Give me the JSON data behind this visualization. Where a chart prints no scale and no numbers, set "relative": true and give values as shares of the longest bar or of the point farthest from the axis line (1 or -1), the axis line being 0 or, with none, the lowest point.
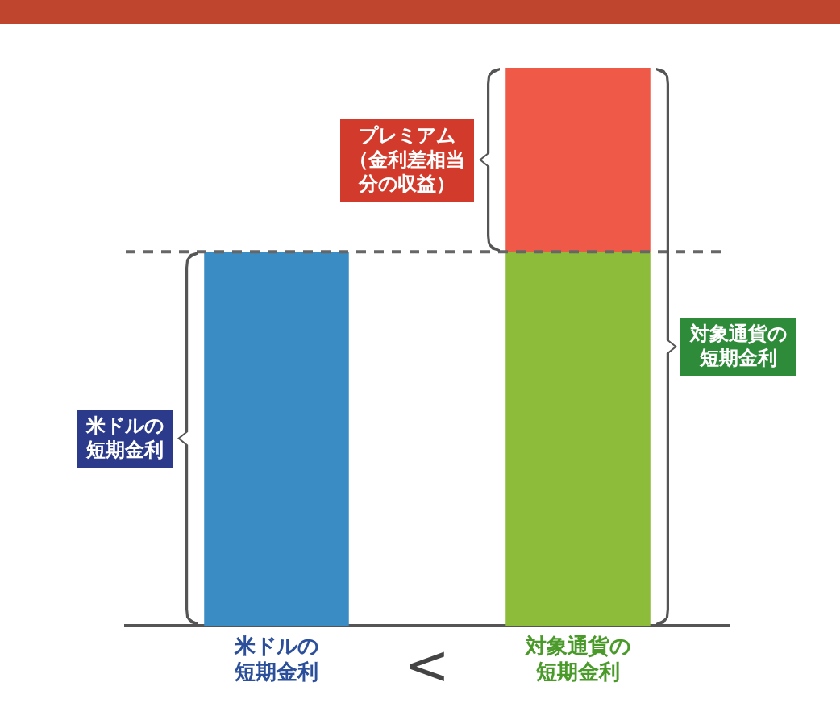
{
  "chart_data": {
    "type": "bar",
    "stacked": true,
    "relative": true,
    "legend": false,
    "grid": false,
    "categories": [
      "米ドルの短期金利",
      "対象通貨の短期金利"
    ],
    "series": [
      {
        "values": [
          0.67,
          0.67
        ],
        "colors": [
          "#3a8cc4",
          "#8dbb3a"
        ]
      },
      {
        "values": [
          null,
          0.33
        ],
        "color": "#ef5a48"
      }
    ],
    "ref_lines": [
      {
        "axis": "y",
        "value": 0.67,
        "color": "#666666",
        "line_style": "dashed"
      }
    ],
    "annotations": [
      "米ドルの短期金利",
      "プレミアム（金利差相当分の収益）",
      "対象通貨の短期金利",
      "<"
    ]
  }
}
